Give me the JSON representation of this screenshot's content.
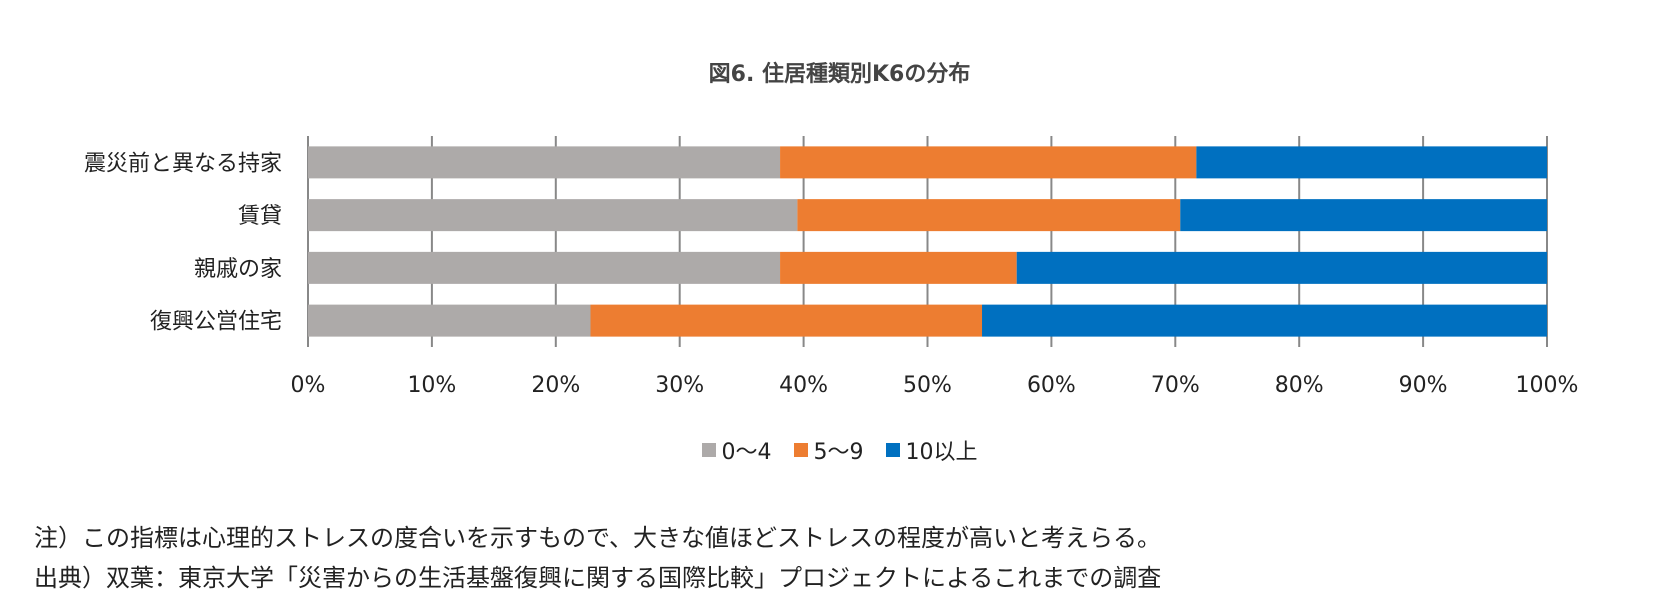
{
  "chart_data": {
    "type": "bar",
    "orientation": "horizontal",
    "stacked": "percent",
    "title": "図6. 住居種類別K6の分布",
    "categories": [
      "震災前と異なる持家",
      "賃貸",
      "親戚の家",
      "復興公営住宅"
    ],
    "series": [
      {
        "name": "0～4",
        "color": "#ADAAA9",
        "values": [
          38.1,
          39.5,
          38.1,
          22.8
        ]
      },
      {
        "name": "5～9",
        "color": "#ED7D31",
        "values": [
          33.6,
          30.9,
          19.1,
          31.6
        ]
      },
      {
        "name": "10以上",
        "color": "#0070C0",
        "values": [
          28.3,
          29.6,
          42.8,
          45.6
        ]
      }
    ],
    "xlim": [
      0,
      100
    ],
    "xticks": [
      "0%",
      "10%",
      "20%",
      "30%",
      "40%",
      "50%",
      "60%",
      "70%",
      "80%",
      "90%",
      "100%"
    ],
    "grid": "vertical",
    "legend": "bottom"
  },
  "notes": [
    "注）この指標は心理的ストレスの度合いを示すもので、大きな値ほどストレスの程度が高いと考えらる。",
    "出典）双葉：東京大学「災害からの生活基盤復興に関する国際比較」プロジェクトによるこれまでの調査"
  ]
}
